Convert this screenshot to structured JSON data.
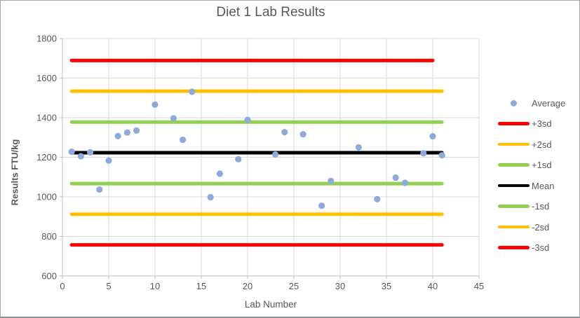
{
  "window": {
    "background": "#FFFFFF",
    "border_color": "#A6A6A6",
    "bottom_border_color": "#8D9096"
  },
  "styles": {
    "grid_color": "#D9D9D9",
    "axis_color": "#BFBFBF",
    "text_color": "#595959",
    "title_color": "#595959",
    "marker_radius": 4.6,
    "ref_line_width": 5
  },
  "chart_data": {
    "type": "scatter",
    "title": "Diet 1 Lab Results",
    "xlabel": "Lab Number",
    "ylabel": "Results FTU/kg",
    "xlim": [
      0,
      45
    ],
    "ylim": [
      600,
      1800
    ],
    "xticks": [
      0,
      5,
      10,
      15,
      20,
      25,
      30,
      35,
      40,
      45
    ],
    "yticks": [
      600,
      800,
      1000,
      1200,
      1400,
      1600,
      1800
    ],
    "grid": true,
    "legend_position": "right",
    "series": [
      {
        "name": "Average",
        "marker": "dot",
        "color": "#8EAADB",
        "points": [
          {
            "x": 1,
            "y": 1228
          },
          {
            "x": 2,
            "y": 1205
          },
          {
            "x": 3,
            "y": 1225
          },
          {
            "x": 4,
            "y": 1037
          },
          {
            "x": 5,
            "y": 1183
          },
          {
            "x": 6,
            "y": 1307
          },
          {
            "x": 7,
            "y": 1325
          },
          {
            "x": 8,
            "y": 1335
          },
          {
            "x": 10,
            "y": 1466
          },
          {
            "x": 12,
            "y": 1397
          },
          {
            "x": 13,
            "y": 1288
          },
          {
            "x": 14,
            "y": 1531
          },
          {
            "x": 16,
            "y": 998
          },
          {
            "x": 17,
            "y": 1117
          },
          {
            "x": 19,
            "y": 1190
          },
          {
            "x": 20,
            "y": 1389
          },
          {
            "x": 23,
            "y": 1214
          },
          {
            "x": 24,
            "y": 1327
          },
          {
            "x": 26,
            "y": 1316
          },
          {
            "x": 28,
            "y": 955
          },
          {
            "x": 29,
            "y": 1080
          },
          {
            "x": 32,
            "y": 1250
          },
          {
            "x": 34,
            "y": 988
          },
          {
            "x": 36,
            "y": 1097
          },
          {
            "x": 37,
            "y": 1071
          },
          {
            "x": 39,
            "y": 1220
          },
          {
            "x": 40,
            "y": 1306
          },
          {
            "x": 41,
            "y": 1210
          }
        ]
      }
    ],
    "ref_lines": [
      {
        "name": "+3sd",
        "value": 1689,
        "color": "#FF0000",
        "x_start": 1,
        "x_end": 40
      },
      {
        "name": "+2sd",
        "value": 1534,
        "color": "#FFC000",
        "x_start": 1,
        "x_end": 41
      },
      {
        "name": "+1sd",
        "value": 1378,
        "color": "#92D050",
        "x_start": 1,
        "x_end": 41
      },
      {
        "name": "Mean",
        "value": 1223,
        "color": "#000000",
        "x_start": 1,
        "x_end": 41
      },
      {
        "name": "-1sd",
        "value": 1067,
        "color": "#92D050",
        "x_start": 1,
        "x_end": 41
      },
      {
        "name": "-2sd",
        "value": 912,
        "color": "#FFC000",
        "x_start": 1,
        "x_end": 41
      },
      {
        "name": "-3sd",
        "value": 757,
        "color": "#FF0000",
        "x_start": 1,
        "x_end": 41
      }
    ],
    "legend": [
      {
        "label": "Average",
        "marker": "dot",
        "color": "#8EAADB"
      },
      {
        "label": "+3sd",
        "marker": "line",
        "color": "#FF0000"
      },
      {
        "label": "+2sd",
        "marker": "line",
        "color": "#FFC000"
      },
      {
        "label": "+1sd",
        "marker": "line",
        "color": "#92D050"
      },
      {
        "label": "Mean",
        "marker": "line",
        "color": "#000000"
      },
      {
        "label": "-1sd",
        "marker": "line",
        "color": "#92D050"
      },
      {
        "label": "-2sd",
        "marker": "line",
        "color": "#FFC000"
      },
      {
        "label": "-3sd",
        "marker": "line",
        "color": "#FF0000"
      }
    ]
  }
}
